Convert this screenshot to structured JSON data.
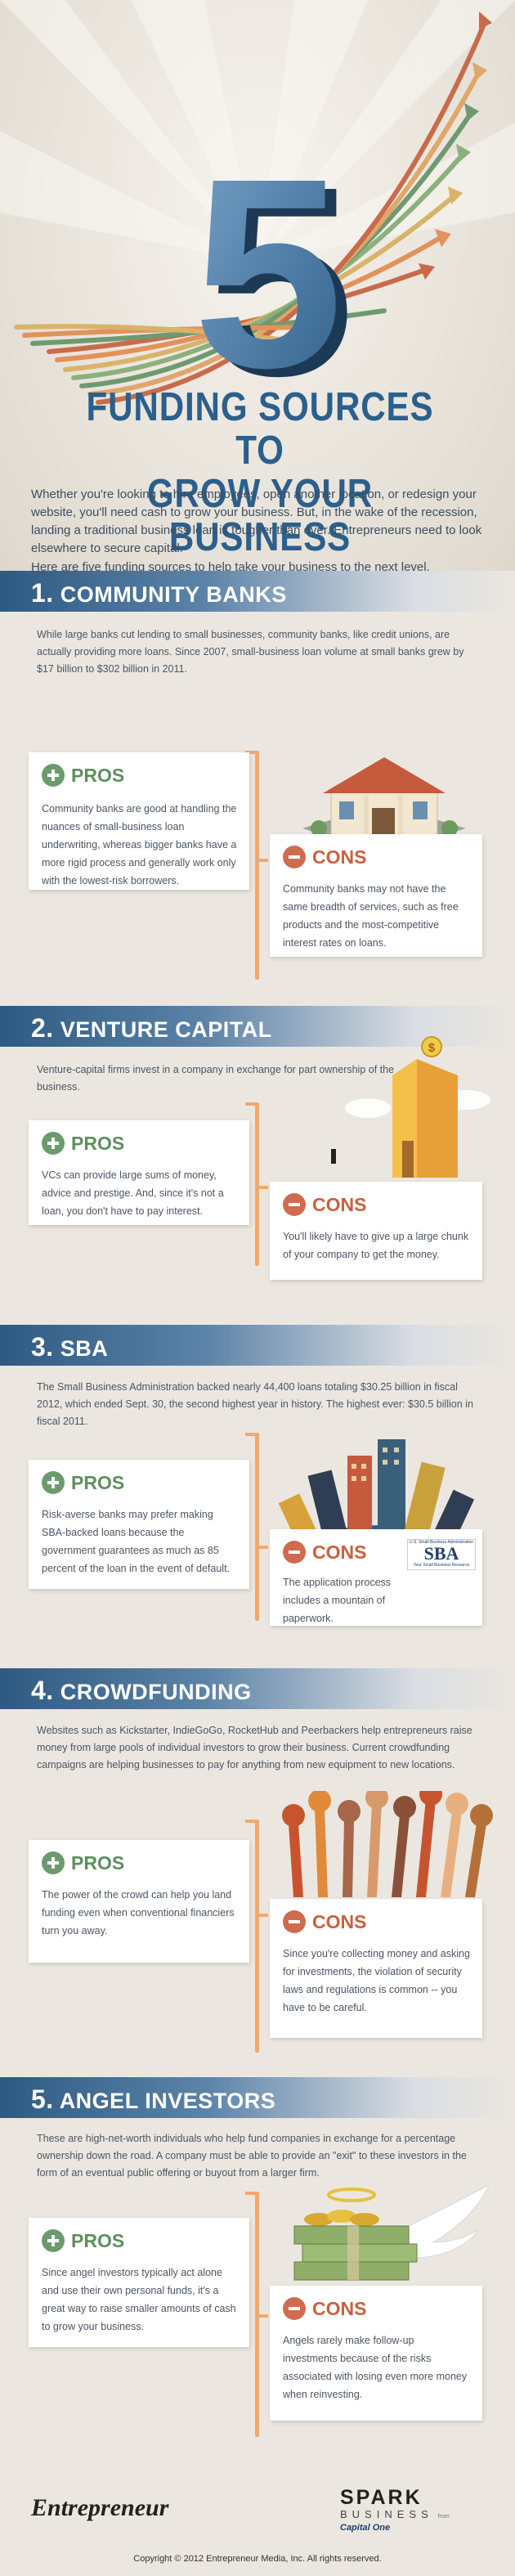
{
  "header": {
    "big_number": "5",
    "title_line1": "FUNDING SOURCES TO",
    "title_line2": "GROW YOUR BUSINESS",
    "intro": "Whether you're looking to hire employees, open another location, or redesign your website, you'll need cash to grow your business. But, in the wake of the recession, landing a traditional business loan is tougher than ever. Entrepreneurs need to look elsewhere to secure capital.",
    "subintro": "Here are five funding sources to help take your business to the next level."
  },
  "sections": [
    {
      "number": "1.",
      "title": "COMMUNITY BANKS",
      "lead": "While large banks cut lending to small businesses, community banks, like credit unions, are actually providing more loans. Since 2007, small-business loan volume at small banks grew by $17 billion to $302 billion in 2011.",
      "pros_label": "PROS",
      "pros": "Community banks are good at handling the nuances of small-business loan underwriting, whereas bigger banks have a more rigid process and generally work only with the lowest-risk borrowers.",
      "cons_label": "CONS",
      "cons": "Community banks may not have the same breadth of services, such as free products and the most-competitive interest rates on loans."
    },
    {
      "number": "2.",
      "title": "VENTURE CAPITAL",
      "lead": "Venture-capital firms invest in a company in exchange for part ownership of the business.",
      "pros_label": "PROS",
      "pros": "VCs can provide large sums of money, advice and prestige. And, since it's not a loan, you don't have to pay interest.",
      "cons_label": "CONS",
      "cons": "You'll likely have to give up a large chunk of your company to get the money."
    },
    {
      "number": "3.",
      "title": "SBA",
      "lead": "The Small Business Administration backed nearly 44,400 loans totaling $30.25 billion in fiscal 2012, which ended Sept. 30, the second highest year in history. The highest ever: $30.5 billion in fiscal 2011.",
      "pros_label": "PROS",
      "pros": "Risk-averse banks may prefer making SBA-backed loans because the government guarantees as much as 85 percent of the loan in the event of default.",
      "cons_label": "CONS",
      "cons": "The application process includes a mountain of paperwork.",
      "sba_logo_top": "U.S. Small Business Administration",
      "sba_logo_text": "SBA",
      "sba_logo_bottom": "Your Small Business Resource"
    },
    {
      "number": "4.",
      "title": "CROWDFUNDING",
      "lead": "Websites such as Kickstarter, IndieGoGo, RocketHub and Peerbackers help entrepreneurs raise money from large pools of individual investors to grow their business. Current crowdfunding campaigns are helping businesses to pay for anything from new equipment to new locations.",
      "pros_label": "PROS",
      "pros": "The power of the crowd can help you land funding even when conventional financiers turn you away.",
      "cons_label": "CONS",
      "cons": "Since you're collecting money and asking for investments, the violation of security laws and regulations is common -- you have to be careful."
    },
    {
      "number": "5.",
      "title": "ANGEL INVESTORS",
      "lead": "These are high-net-worth individuals who help fund companies in exchange for a percentage ownership down the road. A company must be able to provide an \"exit\" to these investors in the form of an eventual public offering or buyout from a larger firm.",
      "pros_label": "PROS",
      "pros": "Since angel investors typically act alone and use their own personal funds, it's a great way to raise smaller amounts of cash to grow your business.",
      "cons_label": "CONS",
      "cons": "Angels rarely make follow-up investments because of the risks associated with losing even more money when reinvesting."
    }
  ],
  "footer": {
    "entrepreneur_logo": "Entrepreneur",
    "spark_logo_top": "SPARK",
    "spark_logo_bottom": "BUSINESS",
    "spark_logo_from": "from",
    "spark_logo_capital": "Capital One",
    "copyright": "Copyright © 2012 Entrepreneur Media, Inc. All rights reserved."
  },
  "colors": {
    "heading_blue": "#2b5f8c",
    "pros_green": "#6c9a6c",
    "cons_orange": "#cf6b4e",
    "timeline_orange": "#f0a86c"
  }
}
